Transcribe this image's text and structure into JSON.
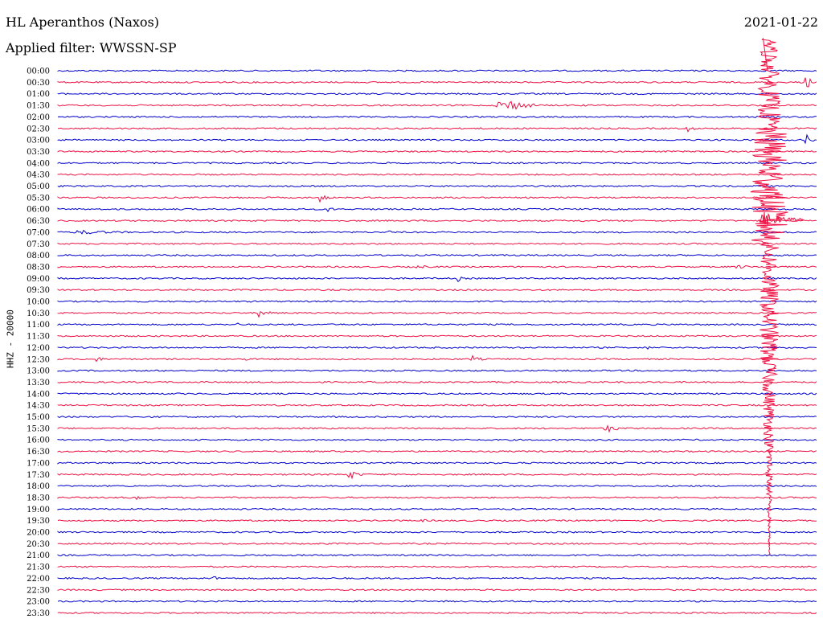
{
  "header": {
    "station": "HL Aperanthos (Naxos)",
    "date": "2021-01-22",
    "filter": "Applied filter: WWSSN-SP"
  },
  "channel_label": "HHZ - 20000",
  "colors": {
    "even_trace": "#0000cc",
    "odd_trace": "#ee1144"
  },
  "time_labels": [
    "00:00",
    "00:30",
    "01:00",
    "01:30",
    "02:00",
    "02:30",
    "03:00",
    "03:30",
    "04:00",
    "04:30",
    "05:00",
    "05:30",
    "06:00",
    "06:30",
    "07:00",
    "07:30",
    "08:00",
    "08:30",
    "09:00",
    "09:30",
    "10:00",
    "10:30",
    "11:00",
    "11:30",
    "12:00",
    "12:30",
    "13:00",
    "13:30",
    "14:00",
    "14:30",
    "15:00",
    "15:30",
    "16:00",
    "16:30",
    "17:00",
    "17:30",
    "18:00",
    "18:30",
    "19:00",
    "19:30",
    "20:00",
    "20:30",
    "21:00",
    "21:30",
    "22:00",
    "22:30",
    "23:00",
    "23:30"
  ]
}
